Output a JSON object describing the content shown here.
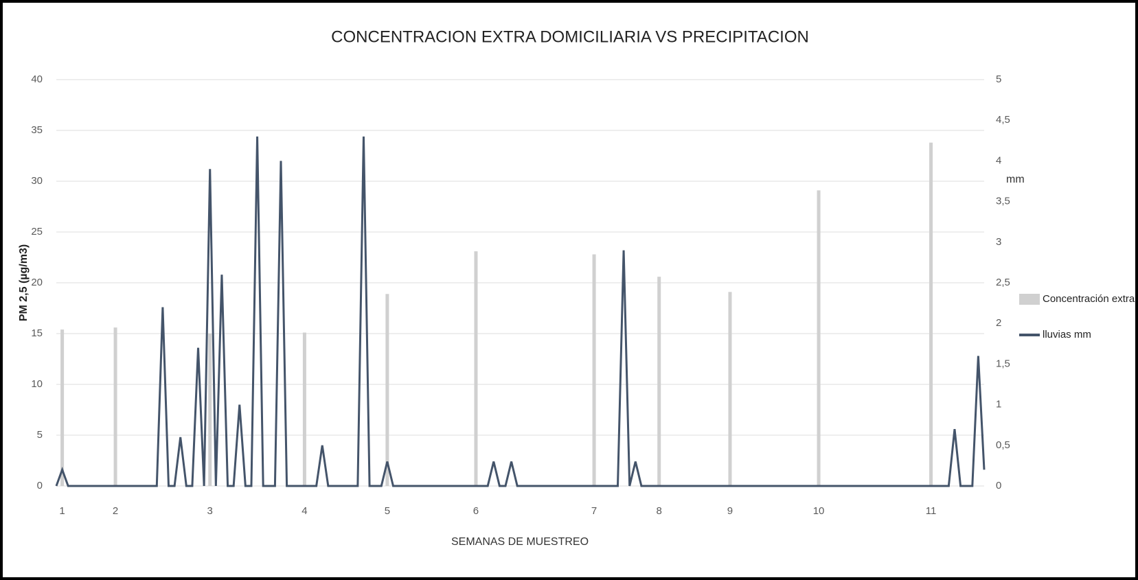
{
  "chart_data": {
    "type": "combo",
    "title": "CONCENTRACION  EXTRA DOMICILIARIA  VS  PRECIPITACION",
    "x_label": "SEMANAS DE MUESTREO",
    "y_label": "PM 2,5 (µg/m3)",
    "y2_label": "mm",
    "xlim": [
      0,
      157
    ],
    "xticks": [
      {
        "value": 1,
        "label": "1"
      },
      {
        "value": 10,
        "label": "2"
      },
      {
        "value": 26,
        "label": "3"
      },
      {
        "value": 42,
        "label": "4"
      },
      {
        "value": 56,
        "label": "5"
      },
      {
        "value": 71,
        "label": "6"
      },
      {
        "value": 91,
        "label": "7"
      },
      {
        "value": 102,
        "label": "8"
      },
      {
        "value": 114,
        "label": "9"
      },
      {
        "value": 129,
        "label": "10"
      },
      {
        "value": 148,
        "label": "11"
      }
    ],
    "ylim": [
      0,
      40
    ],
    "yticks": [
      0,
      5,
      10,
      15,
      20,
      25,
      30,
      35,
      40
    ],
    "y2lim": [
      0,
      5
    ],
    "y2ticks": [
      0,
      {
        "value": 0.5,
        "label": "0,5"
      },
      1,
      {
        "value": 1.5,
        "label": "1,5"
      },
      2,
      {
        "value": 2.5,
        "label": "2,5"
      },
      3,
      {
        "value": 3.5,
        "label": "3,5"
      },
      4,
      {
        "value": 4.5,
        "label": "4,5"
      },
      5
    ],
    "grid": true,
    "legend": "right",
    "series": [
      {
        "name": "Concentración extra",
        "type": "bar",
        "color": "#d0d0d0",
        "x": [
          1,
          10,
          26,
          42,
          56,
          71,
          91,
          102,
          114,
          129,
          148
        ],
        "values": [
          15.4,
          15.6,
          15.0,
          15.1,
          18.9,
          23.1,
          22.8,
          20.6,
          19.1,
          29.1,
          33.8
        ]
      },
      {
        "name": "lluvias mm",
        "type": "line",
        "axis": "y2",
        "color": "#44546a",
        "values": [
          0,
          0.2,
          0,
          0,
          0,
          0,
          0,
          0,
          0,
          0,
          0,
          0,
          0,
          0,
          0,
          0,
          0,
          0,
          2.2,
          0,
          0,
          0.6,
          0,
          0,
          1.7,
          0,
          3.9,
          0,
          2.6,
          0,
          0,
          1.0,
          0,
          0,
          4.3,
          0,
          0,
          0,
          4.0,
          0,
          0,
          0,
          0,
          0,
          0,
          0.5,
          0,
          0,
          0,
          0,
          0,
          0,
          4.3,
          0,
          0,
          0,
          0.3,
          0,
          0,
          0,
          0,
          0,
          0,
          0,
          0,
          0,
          0,
          0,
          0,
          0,
          0,
          0,
          0,
          0,
          0.3,
          0,
          0,
          0.3,
          0,
          0,
          0,
          0,
          0,
          0,
          0,
          0,
          0,
          0,
          0,
          0,
          0,
          0,
          0,
          0,
          0,
          0,
          2.9,
          0,
          0.3,
          0,
          0,
          0,
          0,
          0,
          0,
          0,
          0,
          0,
          0,
          0,
          0,
          0,
          0,
          0,
          0,
          0,
          0,
          0,
          0,
          0,
          0,
          0,
          0,
          0,
          0,
          0,
          0,
          0,
          0,
          0,
          0,
          0,
          0,
          0,
          0,
          0,
          0,
          0,
          0,
          0,
          0,
          0,
          0,
          0,
          0,
          0,
          0,
          0,
          0,
          0,
          0,
          0,
          0.7,
          0,
          0,
          0,
          1.6,
          0.2
        ]
      }
    ]
  }
}
